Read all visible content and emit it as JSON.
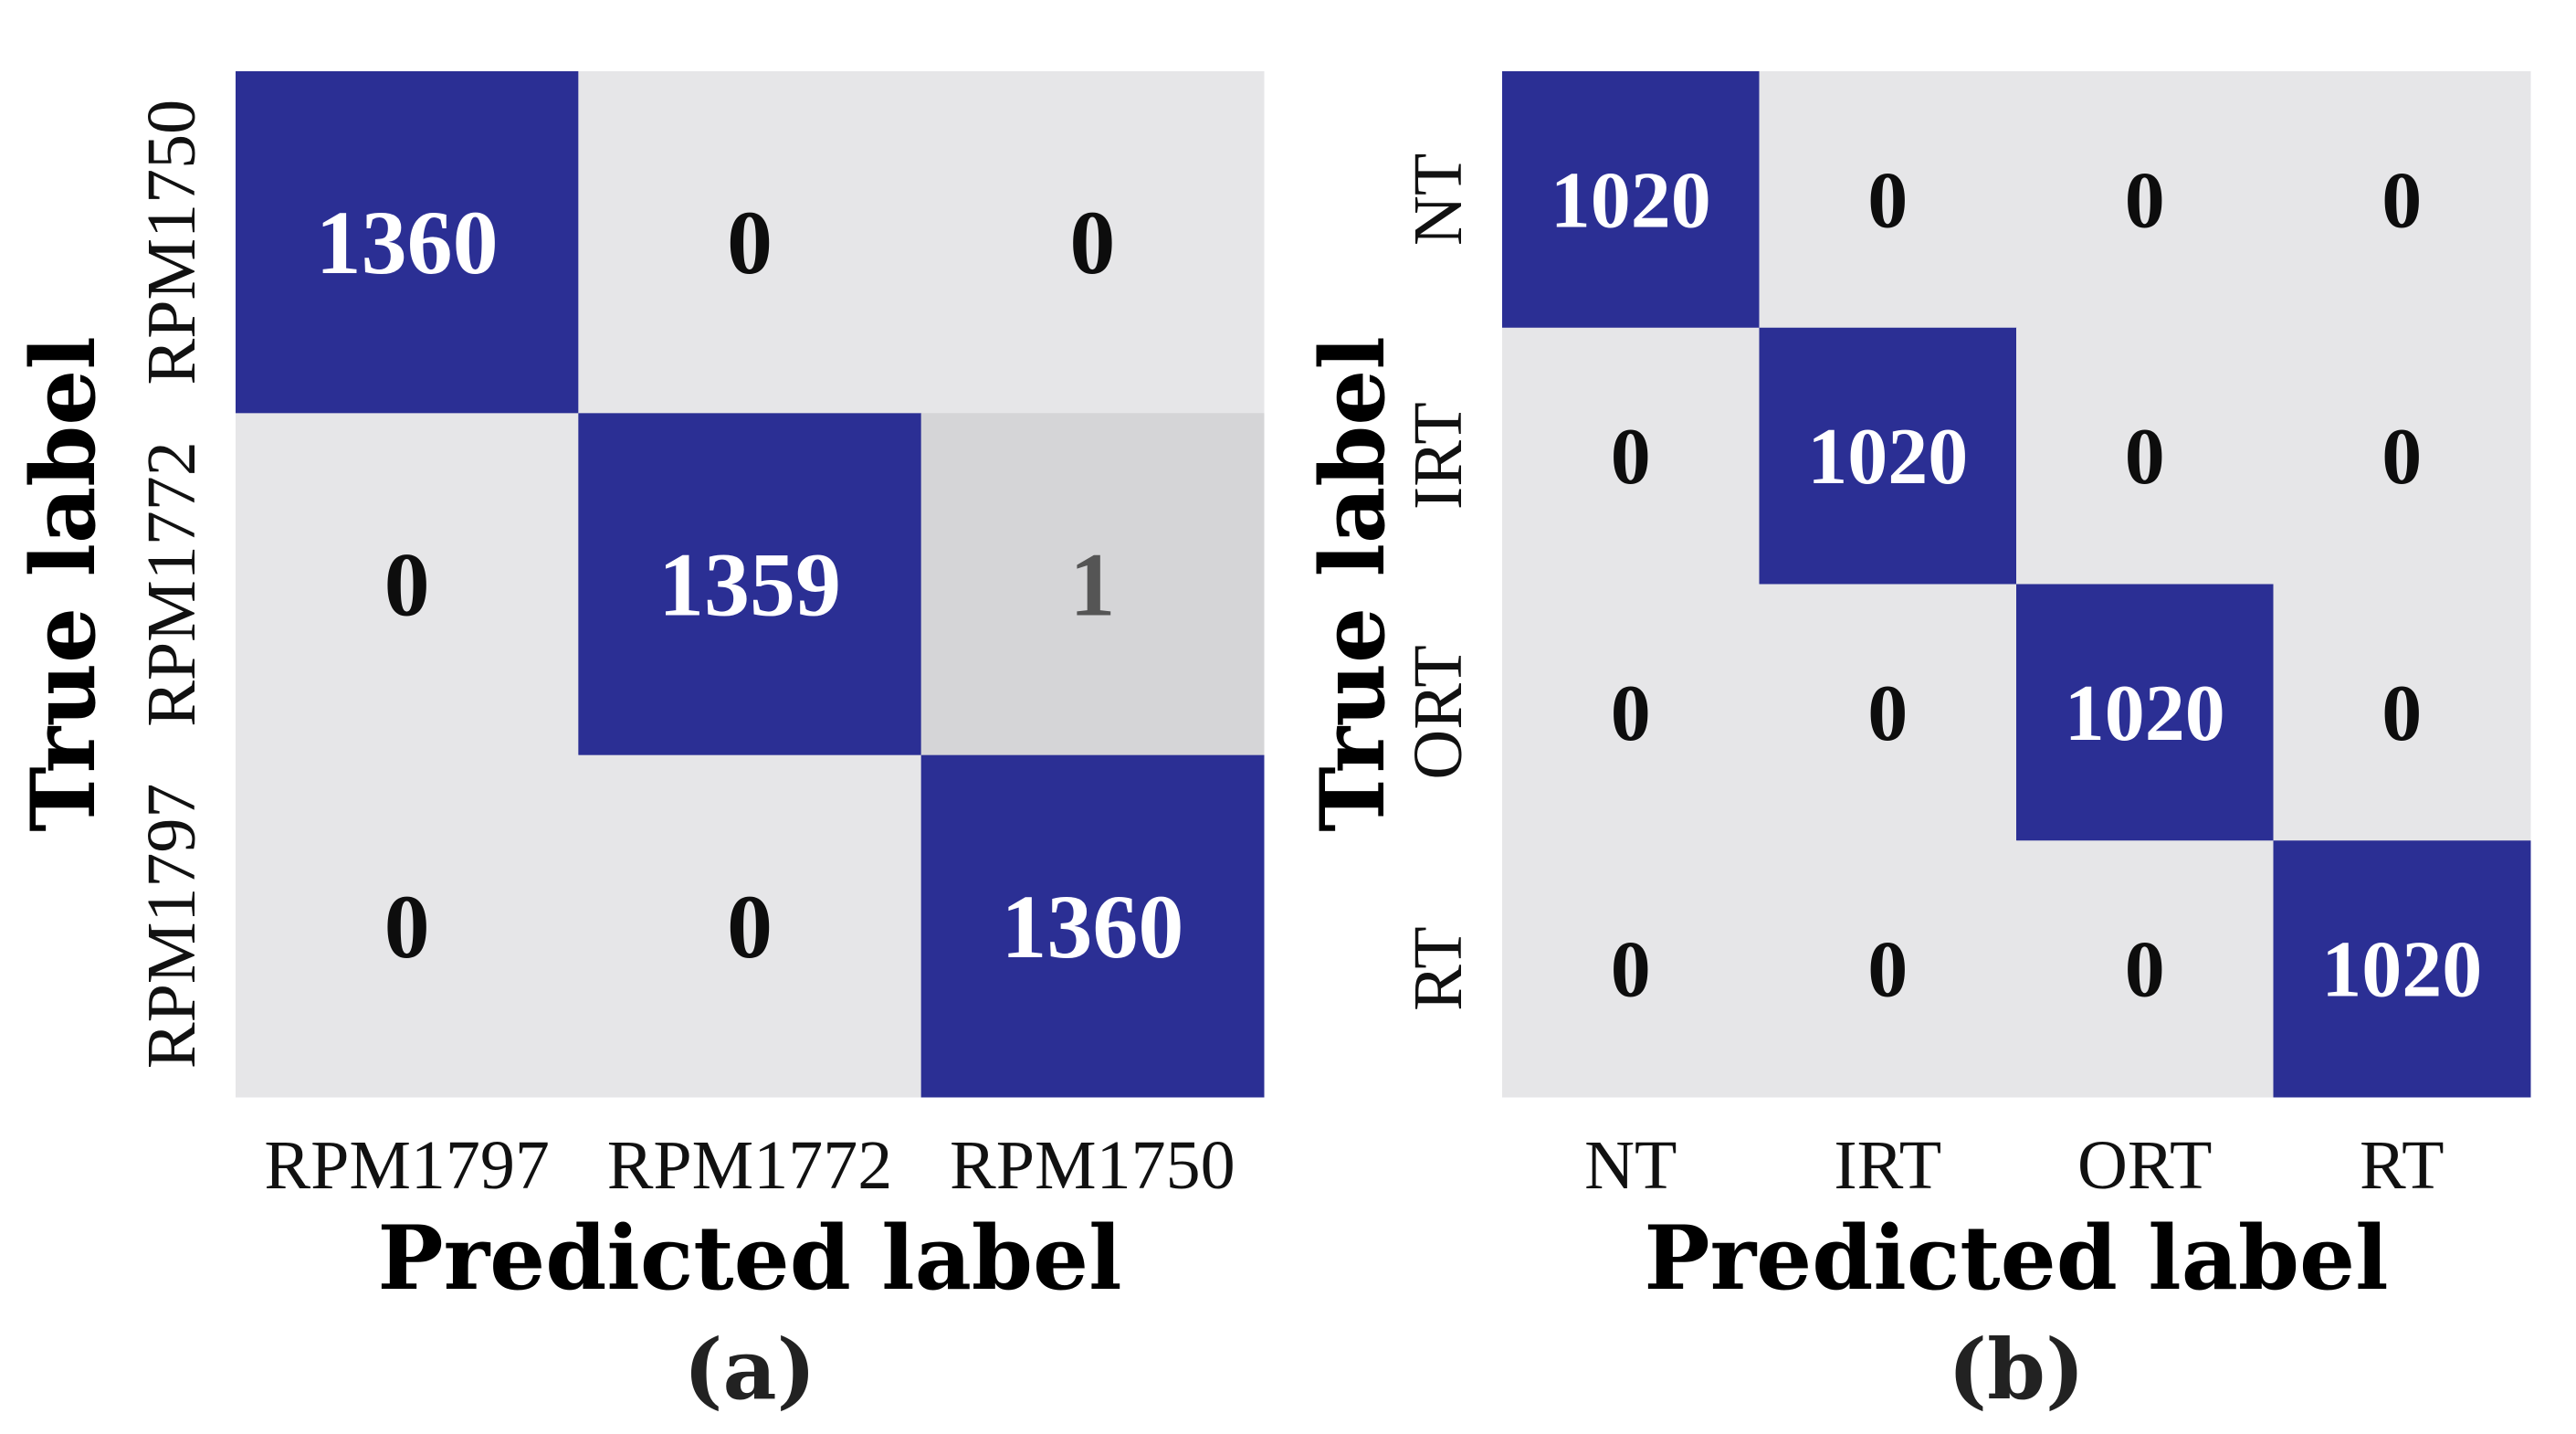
{
  "colors": {
    "diagonal": "#2b2f94",
    "off_diagonal": "#e6e6e8",
    "off_diagonal_nonzero": "#d5d5d7",
    "text_on_dark": "#ffffff",
    "text_on_light": "#0d0d0d",
    "text_on_mid": "#555555"
  },
  "chart_data": [
    {
      "type": "heatmap",
      "caption": "(a)",
      "xlabel": "Predicted label",
      "ylabel": "True label",
      "rows": [
        "RPM1750",
        "RPM1772",
        "RPM1797"
      ],
      "cols": [
        "RPM1797",
        "RPM1772",
        "RPM1750"
      ],
      "values": [
        [
          1360,
          0,
          0
        ],
        [
          0,
          1359,
          1
        ],
        [
          0,
          0,
          1360
        ]
      ]
    },
    {
      "type": "heatmap",
      "caption": "(b)",
      "xlabel": "Predicted label",
      "ylabel": "True label",
      "rows": [
        "NT",
        "IRT",
        "ORT",
        "RT"
      ],
      "cols": [
        "NT",
        "IRT",
        "ORT",
        "RT"
      ],
      "values": [
        [
          1020,
          0,
          0,
          0
        ],
        [
          0,
          1020,
          0,
          0
        ],
        [
          0,
          0,
          1020,
          0
        ],
        [
          0,
          0,
          0,
          1020
        ]
      ]
    }
  ]
}
